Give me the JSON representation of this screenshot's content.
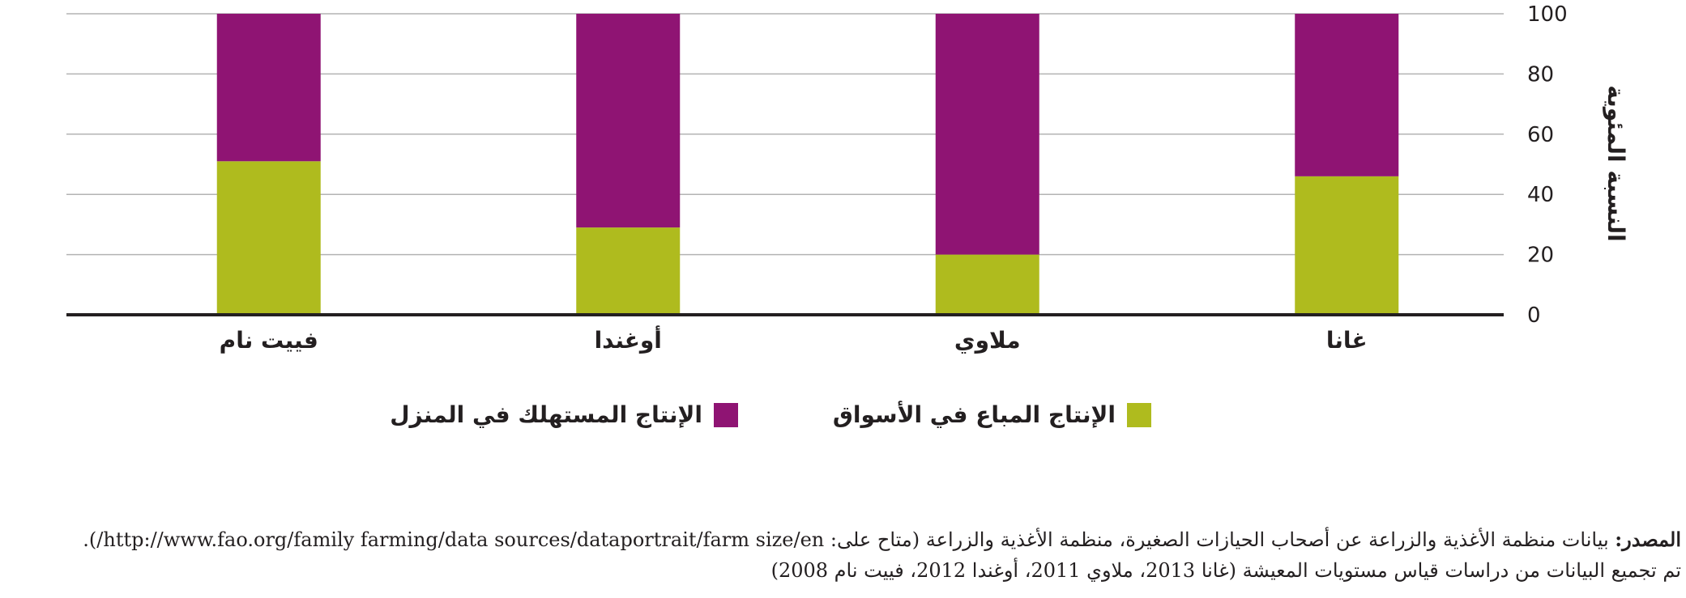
{
  "chart_data": {
    "type": "bar",
    "stacked": true,
    "title": "",
    "xlabel": "",
    "ylabel": "النسبة المئوية",
    "ylim": [
      0,
      100
    ],
    "yticks": [
      "0",
      "20",
      "40",
      "60",
      "80",
      "100"
    ],
    "grid": true,
    "legend_position": "bottom",
    "categories": [
      "غانا",
      "ملاوي",
      "أوغندا",
      "فييت نام"
    ],
    "series": [
      {
        "name": "الإنتاج المباع في الأسواق",
        "color": "#afbb1e",
        "values": [
          46,
          20,
          29,
          51
        ]
      },
      {
        "name": "الإنتاج المستهلك في المنزل",
        "color": "#8f1473",
        "values": [
          54,
          80,
          71,
          49
        ]
      }
    ]
  },
  "source": {
    "label": "المصدر:",
    "line1": "بيانات منظمة الأغذية والزراعة عن أصحاب الحيازات الصغيرة، منظمة الأغذية والزراعة (متاح على:  http://www.fao.org/family farming/data sources/dataportrait/farm size/en/).",
    "line2": "تم تجميع البيانات من دراسات قياس مستويات المعيشة (غانا 2013، ملاوي 2011، أوغندا 2012، فييت نام 2008)"
  }
}
